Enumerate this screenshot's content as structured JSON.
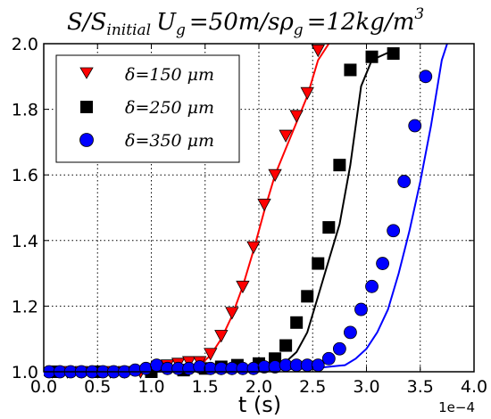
{
  "chart_data": {
    "type": "line",
    "title": "S/S_initial U_g =50m/sρ_g =12kg/m^3",
    "title_parts": {
      "s1": "S/S",
      "sub1": "initial",
      "u": "U",
      "sub2": "g",
      "mid": "=50m/sρ",
      "sub3": "g",
      "tail": "=12kg/m",
      "sup": "3"
    },
    "xlabel": "t (s)",
    "x_offset_label": "1e−4",
    "ylabel": "",
    "xlim": [
      0.0,
      4.0
    ],
    "ylim": [
      1.0,
      2.0
    ],
    "x_ticks": [
      "0.0",
      "0.5",
      "1.0",
      "1.5",
      "2.0",
      "2.5",
      "3.0",
      "3.5",
      "4.0"
    ],
    "y_ticks": [
      "1.0",
      "1.2",
      "1.4",
      "1.6",
      "1.8",
      "2.0"
    ],
    "grid": true,
    "legend_position": "top-left",
    "series": [
      {
        "name": "δ=150 μm",
        "color": "#ff0000",
        "marker": "triangle-down",
        "line": [
          [
            0.05,
            1.0
          ],
          [
            0.5,
            1.0
          ],
          [
            1.0,
            1.005
          ],
          [
            1.3,
            1.01
          ],
          [
            1.45,
            1.02
          ],
          [
            1.55,
            1.05
          ],
          [
            1.65,
            1.1
          ],
          [
            1.75,
            1.17
          ],
          [
            1.85,
            1.26
          ],
          [
            1.95,
            1.37
          ],
          [
            2.05,
            1.49
          ],
          [
            2.15,
            1.6
          ],
          [
            2.25,
            1.68
          ],
          [
            2.35,
            1.76
          ],
          [
            2.45,
            1.84
          ],
          [
            2.55,
            1.95
          ],
          [
            2.65,
            2.0
          ]
        ],
        "markers": [
          [
            0.08,
            1.0
          ],
          [
            0.22,
            1.0
          ],
          [
            0.35,
            1.0
          ],
          [
            0.5,
            1.0
          ],
          [
            0.62,
            1.0
          ],
          [
            0.75,
            1.0
          ],
          [
            0.9,
            1.0
          ],
          [
            1.0,
            1.005
          ],
          [
            1.15,
            1.02
          ],
          [
            1.25,
            1.025
          ],
          [
            1.35,
            1.03
          ],
          [
            1.45,
            1.03
          ],
          [
            1.55,
            1.055
          ],
          [
            1.65,
            1.11
          ],
          [
            1.75,
            1.18
          ],
          [
            1.85,
            1.26
          ],
          [
            1.95,
            1.38
          ],
          [
            2.05,
            1.51
          ],
          [
            2.15,
            1.6
          ],
          [
            2.25,
            1.72
          ],
          [
            2.35,
            1.78
          ],
          [
            2.45,
            1.85
          ],
          [
            2.55,
            1.98
          ]
        ]
      },
      {
        "name": "δ=250 μm",
        "color": "#000000",
        "marker": "square",
        "line": [
          [
            0.05,
            1.0
          ],
          [
            1.0,
            1.0
          ],
          [
            1.8,
            1.01
          ],
          [
            2.1,
            1.015
          ],
          [
            2.25,
            1.03
          ],
          [
            2.35,
            1.06
          ],
          [
            2.45,
            1.12
          ],
          [
            2.55,
            1.23
          ],
          [
            2.65,
            1.34
          ],
          [
            2.75,
            1.45
          ],
          [
            2.85,
            1.63
          ],
          [
            2.95,
            1.87
          ],
          [
            3.05,
            1.95
          ],
          [
            3.25,
            1.98
          ]
        ],
        "markers": [
          [
            0.1,
            1.0
          ],
          [
            0.5,
            1.0
          ],
          [
            1.0,
            1.0
          ],
          [
            1.3,
            1.005
          ],
          [
            1.5,
            1.01
          ],
          [
            1.65,
            1.015
          ],
          [
            1.8,
            1.02
          ],
          [
            2.0,
            1.025
          ],
          [
            2.15,
            1.04
          ],
          [
            2.25,
            1.08
          ],
          [
            2.35,
            1.15
          ],
          [
            2.45,
            1.23
          ],
          [
            2.55,
            1.33
          ],
          [
            2.65,
            1.44
          ],
          [
            2.75,
            1.63
          ],
          [
            2.85,
            1.92
          ],
          [
            3.05,
            1.96
          ],
          [
            3.25,
            1.97
          ]
        ]
      },
      {
        "name": "δ=350 μm",
        "color": "#0000ff",
        "marker": "circle",
        "line": [
          [
            0.05,
            1.0
          ],
          [
            1.0,
            1.0
          ],
          [
            2.0,
            1.005
          ],
          [
            2.5,
            1.01
          ],
          [
            2.8,
            1.02
          ],
          [
            2.9,
            1.04
          ],
          [
            3.0,
            1.07
          ],
          [
            3.1,
            1.12
          ],
          [
            3.2,
            1.19
          ],
          [
            3.3,
            1.3
          ],
          [
            3.4,
            1.43
          ],
          [
            3.5,
            1.58
          ],
          [
            3.6,
            1.75
          ],
          [
            3.7,
            1.95
          ],
          [
            3.75,
            2.0
          ]
        ],
        "markers": [
          [
            0.05,
            1.0
          ],
          [
            0.15,
            1.0
          ],
          [
            0.25,
            1.0
          ],
          [
            0.35,
            1.0
          ],
          [
            0.45,
            1.0
          ],
          [
            0.55,
            1.0
          ],
          [
            0.65,
            1.0
          ],
          [
            0.75,
            1.0
          ],
          [
            0.85,
            1.005
          ],
          [
            0.95,
            1.01
          ],
          [
            1.05,
            1.02
          ],
          [
            1.15,
            1.01
          ],
          [
            1.25,
            1.01
          ],
          [
            1.35,
            1.01
          ],
          [
            1.45,
            1.015
          ],
          [
            1.55,
            1.01
          ],
          [
            1.65,
            1.01
          ],
          [
            1.75,
            1.01
          ],
          [
            1.85,
            1.01
          ],
          [
            1.95,
            1.01
          ],
          [
            2.05,
            1.015
          ],
          [
            2.15,
            1.015
          ],
          [
            2.25,
            1.02
          ],
          [
            2.35,
            1.02
          ],
          [
            2.45,
            1.02
          ],
          [
            2.55,
            1.02
          ],
          [
            2.65,
            1.04
          ],
          [
            2.75,
            1.07
          ],
          [
            2.85,
            1.12
          ],
          [
            2.95,
            1.19
          ],
          [
            3.05,
            1.26
          ],
          [
            3.15,
            1.33
          ],
          [
            3.25,
            1.43
          ],
          [
            3.35,
            1.58
          ],
          [
            3.45,
            1.75
          ],
          [
            3.55,
            1.9
          ]
        ]
      }
    ]
  }
}
